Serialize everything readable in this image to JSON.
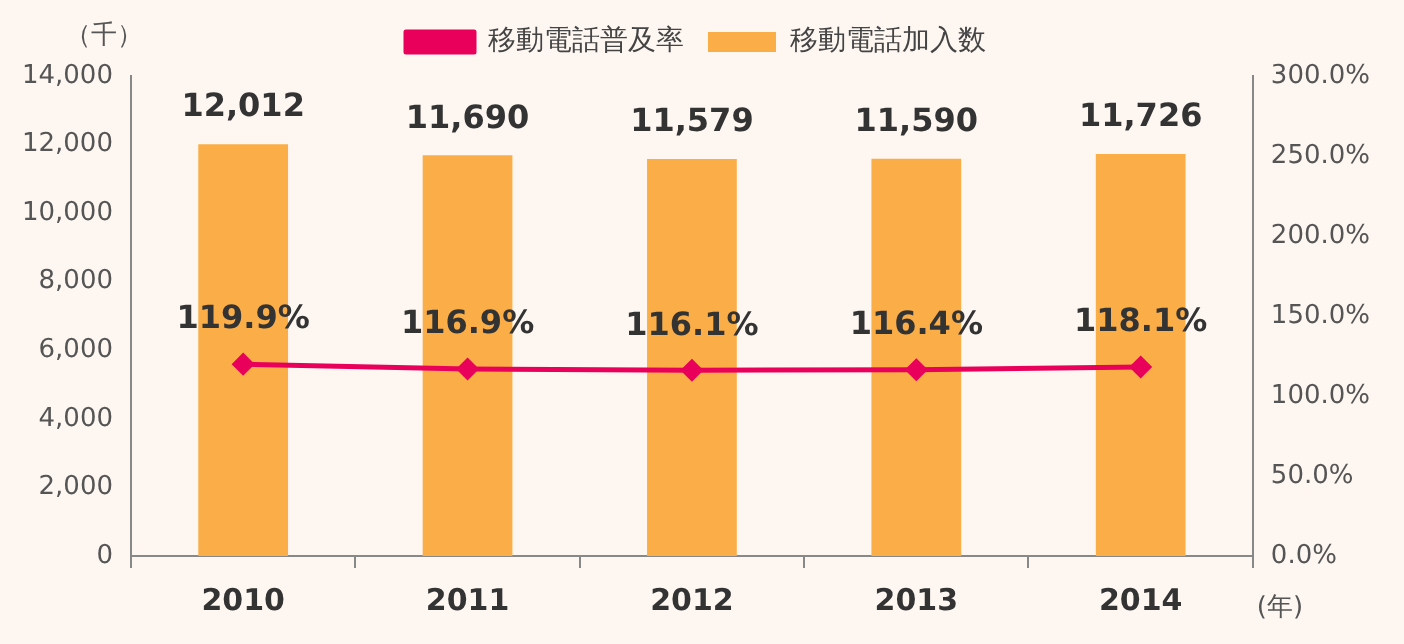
{
  "chart_data": {
    "type": "bar",
    "ylabel": "（千）",
    "xlabel": "(年)",
    "categories": [
      "2010",
      "2011",
      "2012",
      "2013",
      "2014"
    ],
    "series": [
      {
        "name": "移動電話加入数",
        "color": "#fbae48",
        "values": [
          12012,
          11690,
          11579,
          11590,
          11726
        ],
        "value_labels": [
          "12,012",
          "11,690",
          "11,579",
          "11,590",
          "11,726"
        ]
      },
      {
        "name": "移動電話普及率",
        "type": "line",
        "axis": "y2",
        "color": "#e8005a",
        "marker": "diamond",
        "values": [
          119.9,
          116.9,
          116.1,
          116.4,
          118.1
        ],
        "value_labels": [
          "119.9%",
          "116.9%",
          "116.1%",
          "116.4%",
          "118.1%"
        ]
      }
    ],
    "ylim": [
      0,
      14000
    ],
    "yticks": [
      0,
      {
        "value": 2000,
        "label": "2,000"
      },
      {
        "value": 4000,
        "label": "4,000"
      },
      {
        "value": 6000,
        "label": "6,000"
      },
      {
        "value": 8000,
        "label": "8,000"
      },
      {
        "value": 10000,
        "label": "10,000"
      },
      {
        "value": 12000,
        "label": "12,000"
      },
      {
        "value": 14000,
        "label": "14,000"
      }
    ],
    "y2lim": [
      0,
      300
    ],
    "y2ticks": [
      {
        "value": 0,
        "label": "0.0%"
      },
      {
        "value": 50,
        "label": "50.0%"
      },
      {
        "value": 100,
        "label": "100.0%"
      },
      {
        "value": 150,
        "label": "150.0%"
      },
      {
        "value": 200,
        "label": "200.0%"
      },
      {
        "value": 250,
        "label": "250.0%"
      },
      {
        "value": 300,
        "label": "300.0%"
      }
    ],
    "grid": false,
    "legend": "top"
  }
}
